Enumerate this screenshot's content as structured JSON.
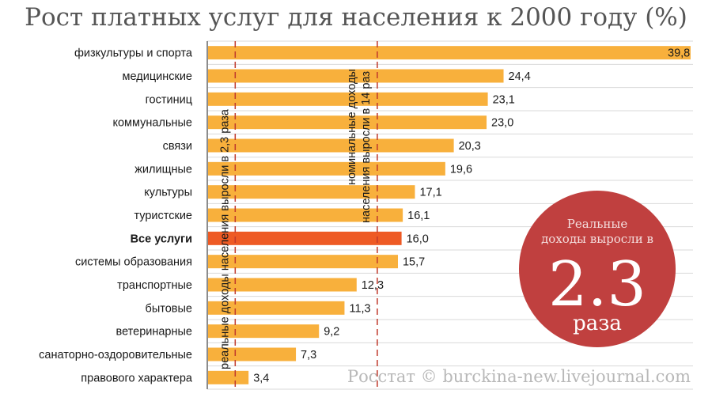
{
  "chart_data": {
    "type": "bar",
    "orientation": "horizontal",
    "title": "Рост платных услуг для населения к 2000 году (%)",
    "categories": [
      "физкультуры и спорта",
      "медицинские",
      "гостиниц",
      "коммунальные",
      "связи",
      "жилищные",
      "культуры",
      "туристские",
      "Все услуги",
      "системы образования",
      "транспортные",
      "бытовые",
      "ветеринарные",
      "санаторно-оздоровительные",
      "правового характера"
    ],
    "values": [
      39.8,
      24.4,
      23.1,
      23.0,
      20.3,
      19.6,
      17.1,
      16.1,
      16.0,
      15.7,
      12.3,
      11.3,
      9.2,
      7.3,
      3.4
    ],
    "value_labels": [
      "39,8",
      "24,4",
      "23,1",
      "23,0",
      "20,3",
      "19,6",
      "17,1",
      "16,1",
      "16,0",
      "15,7",
      "12,3",
      "11,3",
      "9,2",
      "7,3",
      "3,4"
    ],
    "highlight_category": "Все услуги",
    "xlim": [
      0,
      40
    ],
    "grid": true,
    "reference_lines": [
      {
        "value": 2.3,
        "label": "реальные доходы населения выросли в 2,3 раза"
      },
      {
        "value": 14,
        "label_lines": [
          "номинальные доходы",
          "населения выросли в 14 раз"
        ]
      }
    ],
    "colors": {
      "bar": "#f8b03c",
      "highlight": "#ee5a24",
      "reference_line": "#c0392b",
      "grid": "#d9d9d9",
      "badge": "#c0403f"
    }
  },
  "badge": {
    "line1": "Реальные",
    "line2": "доходы выросли в",
    "big": "2.3",
    "line3": "раза"
  },
  "credit": "Росстат © burckina-new.livejournal.com"
}
